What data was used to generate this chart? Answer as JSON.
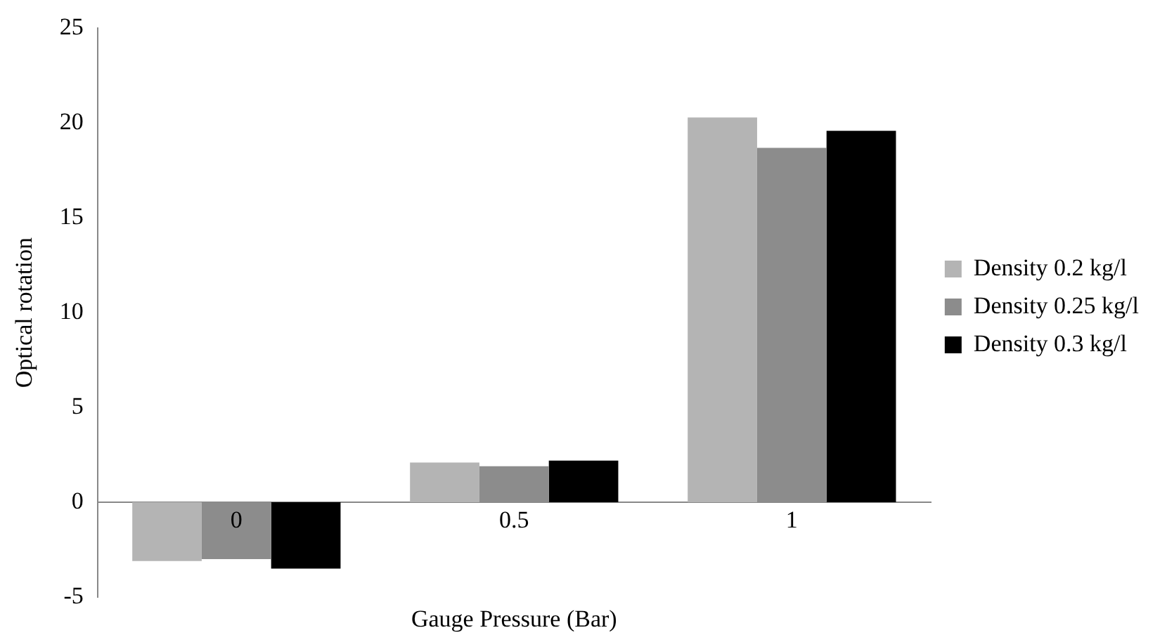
{
  "chart_data": {
    "type": "bar",
    "xlabel": "Gauge Pressure (Bar)",
    "ylabel": "Optical rotation",
    "categories": [
      "0",
      "0.5",
      "1"
    ],
    "series": [
      {
        "name": "Density 0.2 kg/l",
        "color": "#b4b4b4",
        "values": [
          -3.1,
          2.1,
          20.3
        ]
      },
      {
        "name": "Density 0.25 kg/l",
        "color": "#8c8c8c",
        "values": [
          -3.0,
          1.9,
          18.7
        ]
      },
      {
        "name": "Density 0.3 kg/l",
        "color": "#000000",
        "values": [
          -3.5,
          2.2,
          19.6
        ]
      }
    ],
    "ylim": [
      -5,
      25
    ],
    "yticks": [
      -5,
      0,
      5,
      10,
      15,
      20,
      25
    ],
    "grid": false,
    "legend": "right"
  }
}
